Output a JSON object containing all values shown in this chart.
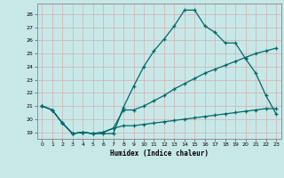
{
  "xlabel": "Humidex (Indice chaleur)",
  "background_color": "#c8e8e8",
  "grid_color": "#d0b8b8",
  "line_color": "#006868",
  "xlim": [
    -0.5,
    23.5
  ],
  "ylim": [
    18.5,
    28.8
  ],
  "xticks": [
    0,
    1,
    2,
    3,
    4,
    5,
    6,
    7,
    8,
    9,
    10,
    11,
    12,
    13,
    14,
    15,
    16,
    17,
    18,
    19,
    20,
    21,
    22,
    23
  ],
  "yticks": [
    19,
    20,
    21,
    22,
    23,
    24,
    25,
    26,
    27,
    28
  ],
  "line1_x": [
    0,
    1,
    2,
    3,
    4,
    5,
    6,
    7,
    8,
    9,
    10,
    11,
    12,
    13,
    14,
    15,
    16,
    17,
    18,
    19,
    20,
    21,
    22,
    23
  ],
  "line1_y": [
    21.0,
    20.7,
    19.7,
    18.9,
    19.0,
    18.9,
    18.9,
    18.9,
    20.9,
    22.5,
    24.0,
    25.2,
    26.1,
    27.1,
    28.3,
    28.3,
    27.1,
    26.6,
    25.8,
    25.8,
    24.6,
    23.5,
    21.8,
    20.4
  ],
  "line2_x": [
    0,
    1,
    2,
    3,
    4,
    5,
    6,
    7,
    8,
    9,
    10,
    11,
    12,
    13,
    14,
    15,
    16,
    17,
    18,
    19,
    20,
    21,
    22,
    23
  ],
  "line2_y": [
    21.0,
    20.7,
    19.7,
    18.9,
    19.0,
    18.9,
    19.0,
    19.3,
    20.7,
    20.7,
    21.0,
    21.4,
    21.8,
    22.3,
    22.7,
    23.1,
    23.5,
    23.8,
    24.1,
    24.4,
    24.7,
    25.0,
    25.2,
    25.4
  ],
  "line3_x": [
    0,
    1,
    2,
    3,
    4,
    5,
    6,
    7,
    8,
    9,
    10,
    11,
    12,
    13,
    14,
    15,
    16,
    17,
    18,
    19,
    20,
    21,
    22,
    23
  ],
  "line3_y": [
    21.0,
    20.7,
    19.7,
    18.9,
    19.0,
    18.9,
    19.0,
    19.3,
    19.5,
    19.5,
    19.6,
    19.7,
    19.8,
    19.9,
    20.0,
    20.1,
    20.2,
    20.3,
    20.4,
    20.5,
    20.6,
    20.7,
    20.8,
    20.8
  ],
  "marker": "+"
}
